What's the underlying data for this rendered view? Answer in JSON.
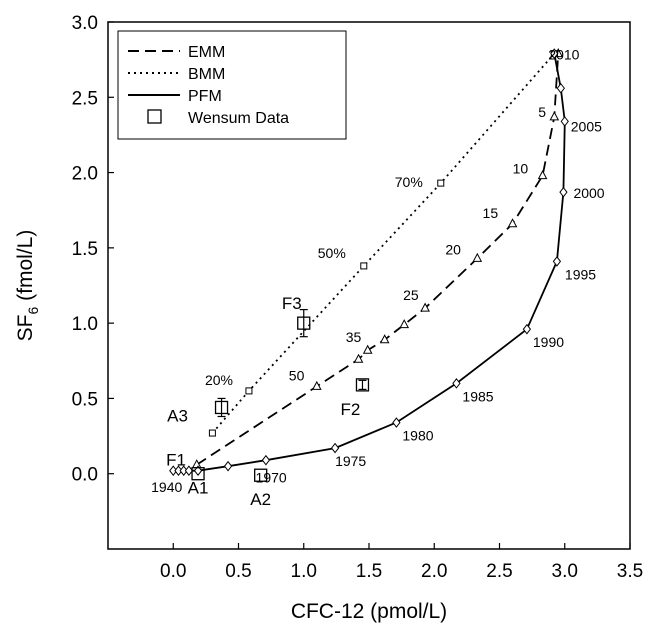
{
  "chart_data": {
    "type": "line",
    "xlabel": "CFC-12 (pmol/L)",
    "ylabel_main": "SF",
    "ylabel_sub": "6",
    "ylabel_unit": " (fmol/L)",
    "xlim": [
      -0.5,
      3.5
    ],
    "ylim": [
      -0.5,
      3.0
    ],
    "xticks": [
      "0.0",
      "0.5",
      "1.0",
      "1.5",
      "2.0",
      "2.5",
      "3.0",
      "3.5"
    ],
    "xtick_values": [
      0,
      0.5,
      1,
      1.5,
      2,
      2.5,
      3,
      3.5
    ],
    "yticks": [
      "0.0",
      "0.5",
      "1.0",
      "1.5",
      "2.0",
      "2.5",
      "3.0"
    ],
    "ytick_values": [
      0,
      0.5,
      1,
      1.5,
      2,
      2.5,
      3
    ],
    "grid": false,
    "legend_position": "top-left",
    "legend": [
      {
        "label": "EMM",
        "style": "dashed"
      },
      {
        "label": "BMM",
        "style": "dotted"
      },
      {
        "label": "PFM",
        "style": "solid"
      },
      {
        "label": "Wensum Data",
        "style": "marker-square"
      }
    ],
    "series": [
      {
        "name": "EMM",
        "style": "dashed",
        "marker": "triangle",
        "x": [
          0.18,
          1.1,
          1.42,
          1.49,
          1.62,
          1.77,
          1.93,
          2.33,
          2.6,
          2.83,
          2.92,
          2.95
        ],
        "y": [
          0.06,
          0.58,
          0.76,
          0.82,
          0.89,
          0.99,
          1.1,
          1.43,
          1.66,
          1.98,
          2.37,
          2.79
        ],
        "labels": [
          "",
          "50",
          "",
          "35",
          "",
          "",
          "25",
          "20",
          "15",
          "10",
          "5",
          ""
        ]
      },
      {
        "name": "BMM",
        "style": "dotted",
        "marker": "small-square",
        "x": [
          0.3,
          0.58,
          1.46,
          2.05,
          2.92
        ],
        "y": [
          0.27,
          0.55,
          1.38,
          1.93,
          2.79
        ],
        "labels": [
          "",
          "20%",
          "50%",
          "70%",
          ""
        ]
      },
      {
        "name": "PFM",
        "style": "solid",
        "marker": "diamond",
        "x": [
          0.0,
          0.04,
          0.08,
          0.12,
          0.19,
          0.42,
          0.71,
          1.24,
          1.71,
          2.17,
          2.71,
          2.94,
          2.99,
          3.0,
          2.97,
          2.92
        ],
        "y": [
          0.02,
          0.02,
          0.02,
          0.02,
          0.02,
          0.05,
          0.09,
          0.17,
          0.34,
          0.6,
          0.96,
          1.41,
          1.87,
          2.34,
          2.56,
          2.79
        ],
        "labels": [
          "",
          "",
          "",
          "",
          "",
          "",
          "",
          "1975",
          "1980",
          "1985",
          "1990",
          "1995",
          "2000",
          "2005",
          "",
          "2010"
        ]
      }
    ],
    "observations": [
      {
        "name": "F1",
        "x": 0.19,
        "y": 0.0,
        "yerr": 0.0
      },
      {
        "name": "A1",
        "x": 0.19,
        "y": 0.0,
        "yerr": 0.0
      },
      {
        "name": "A2",
        "x": 0.67,
        "y": -0.01,
        "yerr": 0.0
      },
      {
        "name": "A3",
        "x": 0.37,
        "y": 0.44,
        "yerr": 0.06
      },
      {
        "name": "F3",
        "x": 1.0,
        "y": 1.0,
        "yerr": 0.09
      },
      {
        "name": "F2",
        "x": 1.45,
        "y": 0.59,
        "yerr": 0.03
      }
    ],
    "annotations": [
      {
        "text": "1940",
        "x": -0.05,
        "y": -0.12
      },
      {
        "text": "1970",
        "x": 0.75,
        "y": -0.06
      }
    ]
  }
}
